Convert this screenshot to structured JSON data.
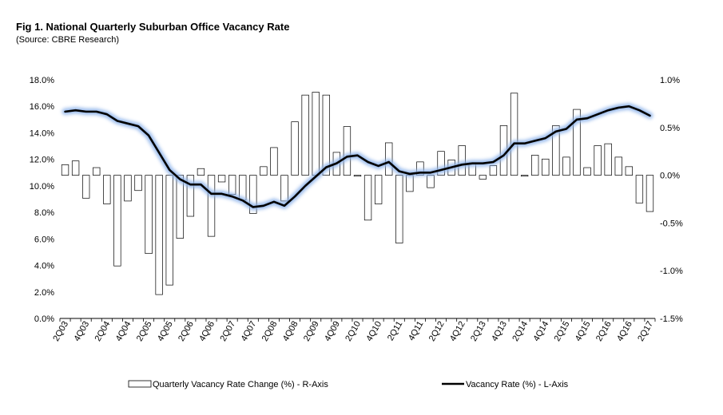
{
  "chart_data": {
    "type": "bar+line",
    "title": "Fig 1. National Quarterly Suburban Office Vacancy Rate",
    "subtitle": "(Source: CBRE Research)",
    "left_axis": {
      "ticks": [
        "0.0%",
        "2.0%",
        "4.0%",
        "6.0%",
        "8.0%",
        "10.0%",
        "12.0%",
        "14.0%",
        "16.0%",
        "18.0%"
      ],
      "ylim": [
        0,
        18
      ]
    },
    "right_axis": {
      "ticks": [
        "-1.5%",
        "-1.0%",
        "-0.5%",
        "0.0%",
        "0.5%",
        "1.0%"
      ],
      "ylim": [
        -1.5,
        1.0
      ]
    },
    "x_tick_labels": [
      "2Q03",
      "4Q03",
      "2Q04",
      "4Q04",
      "2Q05",
      "4Q05",
      "2Q06",
      "4Q06",
      "2Q07",
      "4Q07",
      "2Q08",
      "4Q08",
      "2Q09",
      "4Q09",
      "2Q10",
      "4Q10",
      "2Q11",
      "4Q11",
      "2Q12",
      "4Q12",
      "2Q13",
      "4Q13",
      "2Q14",
      "4Q14",
      "2Q15",
      "4Q15",
      "2Q16",
      "4Q16",
      "2Q17"
    ],
    "quarters": [
      "2Q03",
      "3Q03",
      "4Q03",
      "1Q04",
      "2Q04",
      "3Q04",
      "4Q04",
      "1Q05",
      "2Q05",
      "3Q05",
      "4Q05",
      "1Q06",
      "2Q06",
      "3Q06",
      "4Q06",
      "1Q07",
      "2Q07",
      "3Q07",
      "4Q07",
      "1Q08",
      "2Q08",
      "3Q08",
      "4Q08",
      "1Q09",
      "2Q09",
      "3Q09",
      "4Q09",
      "1Q10",
      "2Q10",
      "3Q10",
      "4Q10",
      "1Q11",
      "2Q11",
      "3Q11",
      "4Q11",
      "1Q12",
      "2Q12",
      "3Q12",
      "4Q12",
      "1Q13",
      "2Q13",
      "3Q13",
      "4Q13",
      "1Q14",
      "2Q14",
      "3Q14",
      "4Q14",
      "1Q15",
      "2Q15",
      "3Q15",
      "4Q15",
      "1Q16",
      "2Q16",
      "3Q16",
      "4Q16",
      "1Q17",
      "2Q17"
    ],
    "series": [
      {
        "name": "Quarterly Vacancy Rate Change (%) - R-Axis",
        "type": "bar",
        "axis": "right",
        "values": [
          0.11,
          0.15,
          -0.24,
          0.08,
          -0.3,
          -0.95,
          -0.27,
          -0.16,
          -0.82,
          -1.25,
          -1.15,
          -0.66,
          -0.43,
          0.07,
          -0.64,
          -0.07,
          -0.2,
          -0.26,
          -0.4,
          0.09,
          0.29,
          -0.27,
          0.56,
          0.84,
          0.87,
          0.84,
          0.24,
          0.51,
          -0.01,
          -0.47,
          -0.3,
          0.34,
          -0.71,
          -0.17,
          0.14,
          -0.13,
          0.25,
          0.16,
          0.31,
          0.13,
          -0.04,
          0.1,
          0.52,
          0.86,
          -0.01,
          0.21,
          0.17,
          0.52,
          0.19,
          0.69,
          0.08,
          0.31,
          0.33,
          0.19,
          0.09,
          -0.29,
          -0.38
        ]
      },
      {
        "name": "Vacancy Rate (%) - L-Axis",
        "type": "line",
        "axis": "left",
        "values": [
          15.6,
          15.7,
          15.6,
          15.6,
          15.4,
          14.9,
          14.7,
          14.5,
          13.8,
          12.5,
          11.2,
          10.5,
          10.1,
          10.1,
          9.4,
          9.4,
          9.2,
          8.9,
          8.4,
          8.5,
          8.8,
          8.5,
          9.2,
          10.0,
          10.7,
          11.4,
          11.7,
          12.2,
          12.3,
          11.8,
          11.5,
          11.8,
          11.1,
          10.9,
          11.0,
          11.0,
          11.2,
          11.4,
          11.6,
          11.7,
          11.7,
          11.8,
          12.3,
          13.2,
          13.2,
          13.4,
          13.6,
          14.1,
          14.3,
          15.0,
          15.1,
          15.4,
          15.7,
          15.9,
          16.0,
          15.7,
          15.3
        ]
      }
    ],
    "grid": false,
    "legend_position": "bottom"
  }
}
